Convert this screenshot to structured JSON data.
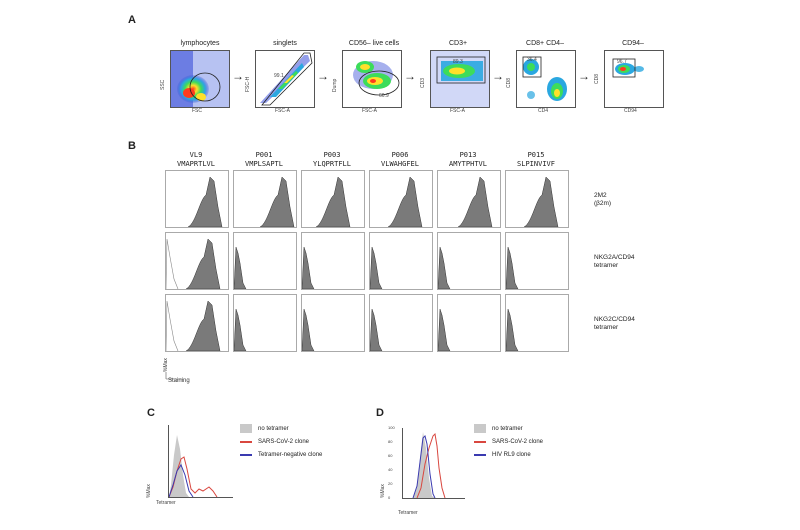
{
  "panels": {
    "A": "A",
    "B": "B",
    "C": "C",
    "D": "D"
  },
  "panelA": {
    "gates": [
      {
        "title": "lymphocytes",
        "xlabel": "FSC",
        "ylabel": "SSC",
        "gate_label": "84.5"
      },
      {
        "title": "singlets",
        "xlabel": "FSC-A",
        "ylabel": "FSC-H",
        "gate_label": "99.1"
      },
      {
        "title": "CD56– live cells",
        "xlabel": "FSC-A",
        "ylabel": "Dump",
        "gate_label": "66.9"
      },
      {
        "title": "CD3+",
        "xlabel": "FSC-A",
        "ylabel": "CD3",
        "gate_label": "89.3"
      },
      {
        "title": "CD8+ CD4–",
        "xlabel": "CD4",
        "ylabel": "CD8",
        "gate_label": "36.4"
      },
      {
        "title": "CD94–",
        "xlabel": "CD94",
        "ylabel": "CD8",
        "gate_label": "96.7"
      }
    ]
  },
  "panelB": {
    "columns": [
      {
        "name": "VL9",
        "seq": "VMAPRTLVL"
      },
      {
        "name": "P001",
        "seq": "VMPLSAPTL"
      },
      {
        "name": "P003",
        "seq": "YLQPRTFLL"
      },
      {
        "name": "P006",
        "seq": "VLWAHGFEL"
      },
      {
        "name": "P013",
        "seq": "AMYTPHTVL"
      },
      {
        "name": "P015",
        "seq": "SLPINVIVF"
      }
    ],
    "rows": [
      {
        "line1": "2M2",
        "line2": "(β2m)"
      },
      {
        "line1": "NKG2A/CD94",
        "line2": "tetramer"
      },
      {
        "line1": "NKG2C/CD94",
        "line2": "tetramer"
      }
    ],
    "ylabel": "%Max",
    "xlabel": "Staining"
  },
  "panelC": {
    "ylabel": "%Max",
    "xlabel": "Tetramer",
    "legend": [
      {
        "label": "no tetramer",
        "color": "#c9c9c9",
        "style": "fill"
      },
      {
        "label": "SARS-CoV-2 clone",
        "color": "#d9473f",
        "style": "line"
      },
      {
        "label": "Tetramer-negative clone",
        "color": "#3a3ab0",
        "style": "line"
      }
    ]
  },
  "panelD": {
    "ylabel": "%Max",
    "xlabel": "Tetramer",
    "yticks": [
      "100",
      "80",
      "60",
      "40",
      "20",
      "0"
    ],
    "legend": [
      {
        "label": "no tetramer",
        "color": "#c9c9c9",
        "style": "fill"
      },
      {
        "label": "SARS-CoV-2 clone",
        "color": "#d9473f",
        "style": "line"
      },
      {
        "label": "HIV RL9 clone",
        "color": "#3a3ab0",
        "style": "line"
      }
    ]
  }
}
